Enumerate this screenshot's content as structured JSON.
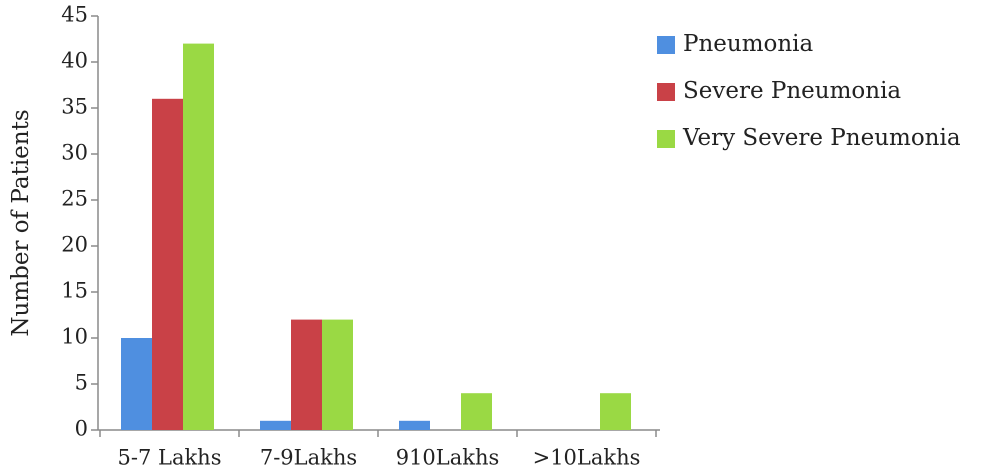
{
  "chart_data": {
    "type": "bar",
    "title": "",
    "xlabel": "",
    "ylabel": "Number of Patients",
    "ylim": [
      0,
      45
    ],
    "yticks": [
      0,
      5,
      10,
      15,
      20,
      25,
      30,
      35,
      40,
      45
    ],
    "categories": [
      "5-7 Lakhs",
      "7-9Lakhs",
      "910Lakhs",
      ">10Lakhs"
    ],
    "series": [
      {
        "name": "Pneumonia",
        "color": "#4f8fe0",
        "values": [
          10,
          1,
          1,
          0
        ]
      },
      {
        "name": "Severe Pneumonia",
        "color": "#c94147",
        "values": [
          36,
          12,
          0,
          0
        ]
      },
      {
        "name": "Very Severe Pneumonia",
        "color": "#9ad944",
        "values": [
          42,
          12,
          4,
          4
        ]
      }
    ],
    "grid": false,
    "legend_position": "top-right"
  }
}
